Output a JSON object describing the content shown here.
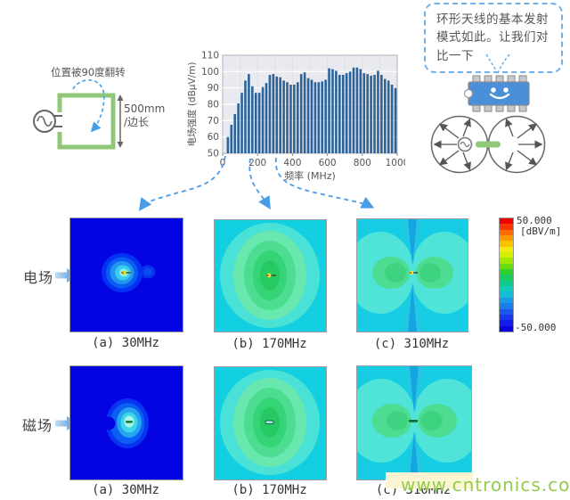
{
  "circuit": {
    "flip_label": "位置被90度翻转",
    "dimension_label": "500mm",
    "dimension_label2": "/边长"
  },
  "speech_bubble": {
    "text": "环形天线的基本发射模式如此。让我们对比一下"
  },
  "chart_data": {
    "type": "bar",
    "title": "",
    "xlabel": "频率 (MHz)",
    "ylabel": "电场强度 (dBμV/m)",
    "xlim": [
      0,
      1000
    ],
    "ylim": [
      50,
      110
    ],
    "xticks": [
      0,
      200,
      400,
      600,
      800,
      1000
    ],
    "yticks": [
      50,
      60,
      70,
      80,
      90,
      100,
      110
    ],
    "grid": true,
    "legend": false,
    "bar_color": "#2e6399",
    "x": [
      30,
      50,
      70,
      90,
      110,
      130,
      150,
      170,
      190,
      210,
      230,
      250,
      270,
      290,
      310,
      330,
      350,
      370,
      390,
      410,
      430,
      450,
      470,
      490,
      510,
      530,
      550,
      570,
      590,
      610,
      630,
      650,
      670,
      690,
      710,
      730,
      750,
      770,
      790,
      810,
      830,
      850,
      870,
      890,
      910,
      930,
      950,
      970,
      990
    ],
    "values": [
      60,
      67.5,
      74,
      80.5,
      87,
      94.5,
      98.5,
      91,
      87,
      87,
      90.5,
      93,
      98,
      98.5,
      97,
      96.5,
      94.5,
      93.5,
      92,
      92,
      93.5,
      98.5,
      99.5,
      96,
      95,
      93.5,
      93.5,
      94,
      95,
      102,
      101.5,
      100.5,
      98,
      98,
      99,
      100,
      102.5,
      102.5,
      101.5,
      99,
      98.5,
      97.5,
      98,
      100.5,
      98,
      95.5,
      94.5,
      92,
      90
    ]
  },
  "field_rows": [
    {
      "label": "电场",
      "captions": [
        "(a) 30MHz",
        "(b) 170MHz",
        "(c) 310MHz"
      ]
    },
    {
      "label": "磁场",
      "captions": [
        "(a) 30MHz",
        "(b) 170MHz",
        "(c) 310MHz"
      ]
    }
  ],
  "colorbar": {
    "max_label": "50.000",
    "unit_label": "[dBV/m]",
    "min_label": "-50.000",
    "colors": [
      "#f00000",
      "#f83800",
      "#fc6c00",
      "#fc9800",
      "#f8c400",
      "#f0ea10",
      "#d0f000",
      "#a0e800",
      "#68dc10",
      "#30d030",
      "#18cc60",
      "#10cc8c",
      "#10ccb8",
      "#14bcd8",
      "#189ce8",
      "#1c7cec",
      "#1c58ec",
      "#1838ec",
      "#141cec",
      "#0c04e0"
    ]
  },
  "watermark": {
    "text": "www.cntronics.com",
    "color": "#8dc63f"
  }
}
